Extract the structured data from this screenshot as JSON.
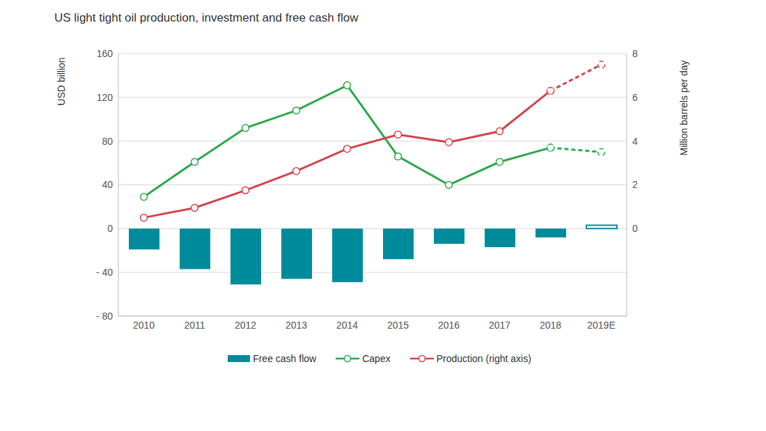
{
  "chart_data": {
    "type": "bar",
    "title": "US light tight oil production, investment and free cash flow",
    "y_label": "USD billion",
    "y2_label": "Million barrels per day",
    "categories": [
      "2010",
      "2011",
      "2012",
      "2013",
      "2014",
      "2015",
      "2016",
      "2017",
      "2018",
      "2019E"
    ],
    "series": [
      {
        "name": "Free cash flow",
        "type": "bar",
        "color": "#008b9c",
        "values": [
          -19,
          -37,
          -51,
          -46,
          -49,
          -28,
          -14,
          -17,
          -8,
          3
        ]
      },
      {
        "name": "Capex",
        "type": "line",
        "color": "#2aa84a",
        "marker": "circle",
        "values": [
          29,
          61,
          92,
          108,
          131,
          66,
          40,
          61,
          74,
          70
        ]
      },
      {
        "name": "Production (right axis)",
        "type": "line",
        "color": "#d1434b",
        "marker": "circle",
        "axis": "y2",
        "values": [
          0.5,
          0.95,
          1.75,
          2.63,
          3.65,
          4.3,
          3.95,
          4.45,
          6.3,
          7.5
        ]
      }
    ],
    "ylim": [
      -80,
      160
    ],
    "yticks": [
      {
        "value": -80,
        "label": "- 80"
      },
      {
        "value": -40,
        "label": "- 40"
      },
      0,
      40,
      80,
      120,
      160
    ],
    "y2lim": [
      -4,
      8
    ],
    "y2ticks": [
      0,
      2,
      4,
      6,
      8
    ],
    "grid": true,
    "legend": "bottom"
  }
}
